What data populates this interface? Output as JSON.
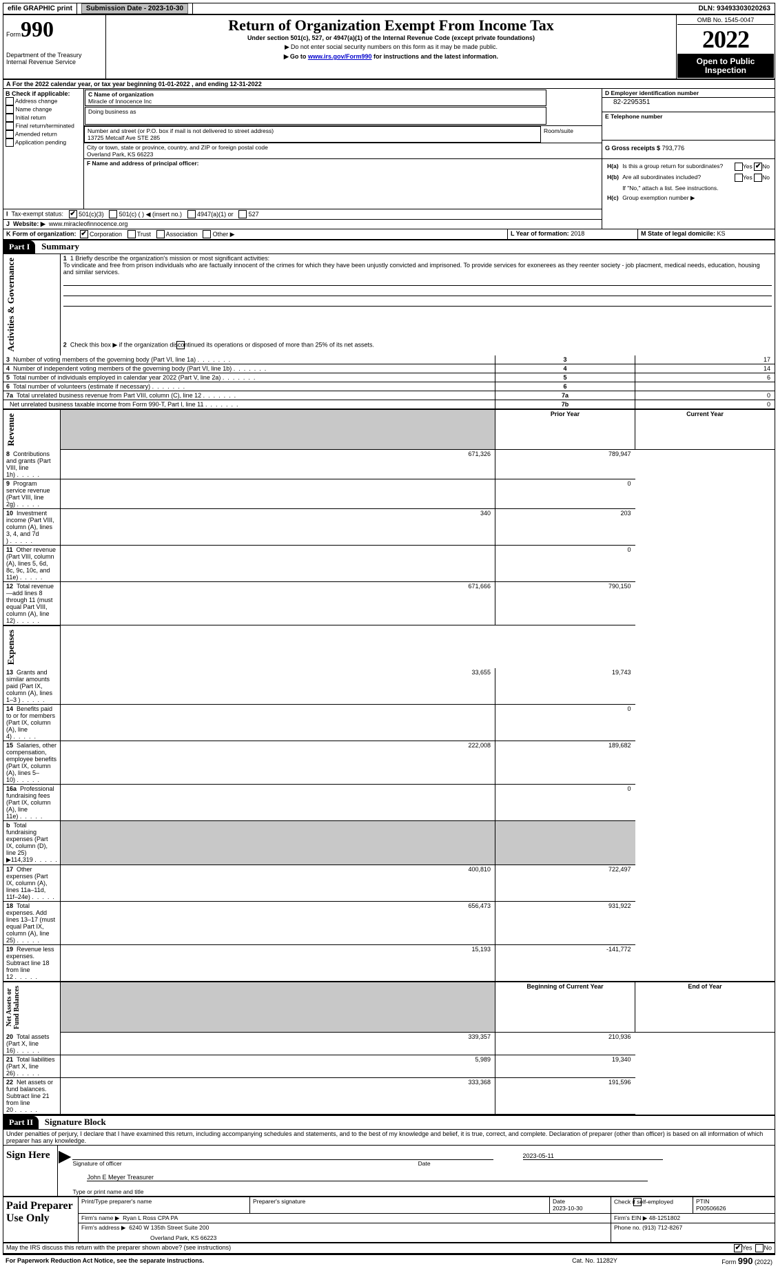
{
  "topbar": {
    "efile_label": "efile GRAPHIC print",
    "submission_label": "Submission Date - 2023-10-30",
    "dln_label": "DLN: 93493303020263"
  },
  "header": {
    "form_label": "Form",
    "form_number": "990",
    "dept": "Department of the Treasury\nInternal Revenue Service",
    "title": "Return of Organization Exempt From Income Tax",
    "subtitle": "Under section 501(c), 527, or 4947(a)(1) of the Internal Revenue Code (except private foundations)",
    "note1": "Do not enter social security numbers on this form as it may be made public.",
    "note2_pre": "Go to ",
    "note2_link": "www.irs.gov/Form990",
    "note2_post": " for instructions and the latest information.",
    "omb": "OMB No. 1545-0047",
    "year": "2022",
    "open": "Open to Public Inspection"
  },
  "A": {
    "text": "For the 2022 calendar year, or tax year beginning ",
    "begin": "01-01-2022",
    "mid": "   , and ending ",
    "end": "12-31-2022"
  },
  "B": {
    "header": "B Check if applicable:",
    "items": [
      "Address change",
      "Name change",
      "Initial return",
      "Final return/terminated",
      "Amended return",
      "Application pending"
    ]
  },
  "C": {
    "name_label": "C Name of organization",
    "name": "Miracle of Innocence Inc",
    "dba_label": "Doing business as",
    "addr_label": "Number and street (or P.O. box if mail is not delivered to street address)",
    "addr": "13725 Metcalf Ave STE 285",
    "room_label": "Room/suite",
    "city_label": "City or town, state or province, country, and ZIP or foreign postal code",
    "city": "Overland Park, KS  66223"
  },
  "D": {
    "label": "D Employer identification number",
    "value": "82-2295351"
  },
  "E": {
    "label": "E Telephone number",
    "value": ""
  },
  "G": {
    "label": "G Gross receipts $",
    "value": "793,776"
  },
  "F": {
    "label": "F  Name and address of principal officer:",
    "value": ""
  },
  "H": {
    "a": "Is this a group return for subordinates?",
    "b": "Are all subordinates included?",
    "b_note": "If \"No,\" attach a list. See instructions.",
    "c_label": "Group exemption number ▶",
    "ha_no": true
  },
  "I": {
    "label": "Tax-exempt status:",
    "opts": [
      "501(c)(3)",
      "501(c) (   ) ◀ (insert no.)",
      "4947(a)(1) or",
      "527"
    ],
    "checked": 0
  },
  "J": {
    "label": "Website: ▶",
    "value": "www.miracleofinnocence.org"
  },
  "K": {
    "label": "K Form of organization:",
    "opts": [
      "Corporation",
      "Trust",
      "Association",
      "Other ▶"
    ],
    "checked": 0
  },
  "L": {
    "label": "L Year of formation:",
    "value": "2018"
  },
  "M": {
    "label": "M State of legal domicile:",
    "value": "KS"
  },
  "partI": {
    "title": "Summary",
    "q1_label": "1  Briefly describe the organization's mission or most significant activities:",
    "q1_text": "To vindicate and free from prison individuals who are factually innocent of the crimes for which they have been unjustly convicted and imprisoned. To provide services for exonerees as they reenter society - job placment, medical needs, education, housing and similar services.",
    "q2": "Check this box ▶        if the organization discontinued its operations or disposed of more than 25% of its net assets.",
    "rows_top": [
      {
        "n": "3",
        "t": "Number of voting members of the governing body (Part VI, line 1a)",
        "l": "3",
        "v": "17"
      },
      {
        "n": "4",
        "t": "Number of independent voting members of the governing body (Part VI, line 1b)",
        "l": "4",
        "v": "14"
      },
      {
        "n": "5",
        "t": "Total number of individuals employed in calendar year 2022 (Part V, line 2a)",
        "l": "5",
        "v": "6"
      },
      {
        "n": "6",
        "t": "Total number of volunteers (estimate if necessary)",
        "l": "6",
        "v": ""
      },
      {
        "n": "7a",
        "t": "Total unrelated business revenue from Part VIII, column (C), line 12",
        "l": "7a",
        "v": "0"
      },
      {
        "n": "",
        "t": "Net unrelated business taxable income from Form 990-T, Part I, line 11",
        "l": "7b",
        "v": "0"
      }
    ],
    "col_prior": "Prior Year",
    "col_current": "Current Year",
    "revenue": [
      {
        "n": "8",
        "t": "Contributions and grants (Part VIII, line 1h)",
        "p": "671,326",
        "c": "789,947"
      },
      {
        "n": "9",
        "t": "Program service revenue (Part VIII, line 2g)",
        "p": "",
        "c": "0"
      },
      {
        "n": "10",
        "t": "Investment income (Part VIII, column (A), lines 3, 4, and 7d )",
        "p": "340",
        "c": "203"
      },
      {
        "n": "11",
        "t": "Other revenue (Part VIII, column (A), lines 5, 6d, 8c, 9c, 10c, and 11e)",
        "p": "",
        "c": "0"
      },
      {
        "n": "12",
        "t": "Total revenue—add lines 8 through 11 (must equal Part VIII, column (A), line 12)",
        "p": "671,666",
        "c": "790,150"
      }
    ],
    "expenses": [
      {
        "n": "13",
        "t": "Grants and similar amounts paid (Part IX, column (A), lines 1–3 )",
        "p": "33,655",
        "c": "19,743"
      },
      {
        "n": "14",
        "t": "Benefits paid to or for members (Part IX, column (A), line 4)",
        "p": "",
        "c": "0"
      },
      {
        "n": "15",
        "t": "Salaries, other compensation, employee benefits (Part IX, column (A), lines 5–10)",
        "p": "222,008",
        "c": "189,682"
      },
      {
        "n": "16a",
        "t": "Professional fundraising fees (Part IX, column (A), line 11e)",
        "p": "",
        "c": "0"
      },
      {
        "n": "b",
        "t": "Total fundraising expenses (Part IX, column (D), line 25) ▶114,319",
        "p": "GREY",
        "c": "GREY"
      },
      {
        "n": "17",
        "t": "Other expenses (Part IX, column (A), lines 11a–11d, 11f–24e)",
        "p": "400,810",
        "c": "722,497"
      },
      {
        "n": "18",
        "t": "Total expenses. Add lines 13–17 (must equal Part IX, column (A), line 25)",
        "p": "656,473",
        "c": "931,922"
      },
      {
        "n": "19",
        "t": "Revenue less expenses. Subtract line 18 from line 12",
        "p": "15,193",
        "c": "-141,772"
      }
    ],
    "col_begin": "Beginning of Current Year",
    "col_end": "End of Year",
    "netassets": [
      {
        "n": "20",
        "t": "Total assets (Part X, line 16)",
        "p": "339,357",
        "c": "210,936"
      },
      {
        "n": "21",
        "t": "Total liabilities (Part X, line 26)",
        "p": "5,989",
        "c": "19,340"
      },
      {
        "n": "22",
        "t": "Net assets or fund balances. Subtract line 21 from line 20",
        "p": "333,368",
        "c": "191,596"
      }
    ],
    "side_labels": {
      "gov": "Activities & Governance",
      "rev": "Revenue",
      "exp": "Expenses",
      "net": "Net Assets or\nFund Balances"
    }
  },
  "partII": {
    "title": "Signature Block",
    "declaration": "Under penalties of perjury, I declare that I have examined this return, including accompanying schedules and statements, and to the best of my knowledge and belief, it is true, correct, and complete. Declaration of preparer (other than officer) is based on all information of which preparer has any knowledge.",
    "sign_here": "Sign Here",
    "sig_officer": "Signature of officer",
    "sig_date": "2023-05-11",
    "date_label": "Date",
    "officer_name": "John E Meyer  Treasurer",
    "type_label": "Type or print name and title",
    "paid": "Paid Preparer Use Only",
    "prep_name_label": "Print/Type preparer's name",
    "prep_sig_label": "Preparer's signature",
    "prep_date_label": "Date",
    "prep_date": "2023-10-30",
    "check_self": "Check         if self-employed",
    "ptin_label": "PTIN",
    "ptin": "P00506626",
    "firm_name_label": "Firm's name    ▶",
    "firm_name": "Ryan L Ross CPA PA",
    "firm_ein_label": "Firm's EIN ▶",
    "firm_ein": "48-1251802",
    "firm_addr_label": "Firm's address ▶",
    "firm_addr1": "6240 W 135th Street Suite 200",
    "firm_addr2": "Overland Park, KS  66223",
    "phone_label": "Phone no.",
    "phone": "(913) 712-8267",
    "may_irs": "May the IRS discuss this return with the preparer shown above? (see instructions)",
    "may_yes": true
  },
  "footer": {
    "pra": "For Paperwork Reduction Act Notice, see the separate instructions.",
    "cat": "Cat. No. 11282Y",
    "form": "Form 990 (2022)"
  },
  "labels": {
    "yes": "Yes",
    "no": "No",
    "b": "b",
    "2": "2",
    "Ha": "H(a)",
    "Hb": "H(b)",
    "Hc": "H(c)",
    "I": "I",
    "J": "J"
  }
}
